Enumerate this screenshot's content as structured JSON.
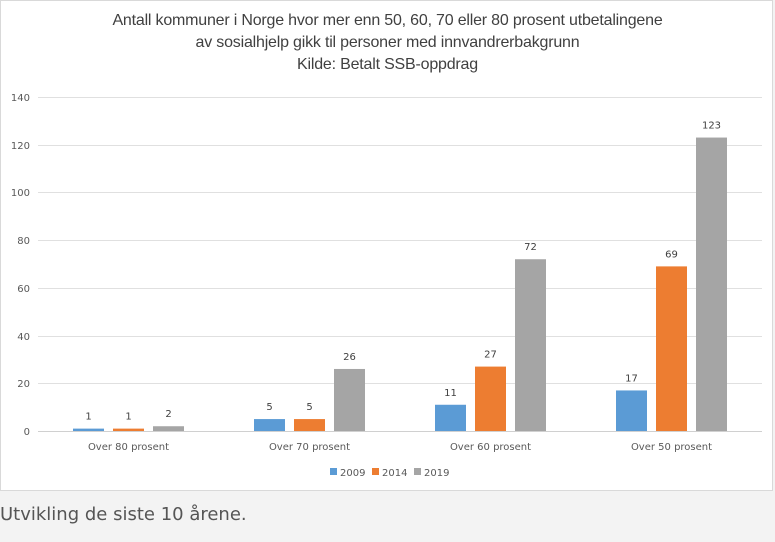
{
  "chart_data": {
    "type": "bar",
    "title": [
      "Antall kommuner i Norge hvor mer enn 50, 60, 70 eller 80 prosent utbetalingene",
      "av sosialhjelp gikk til personer med innvandrerbakgrunn",
      "Kilde: Betalt SSB-oppdrag"
    ],
    "xlabel": "",
    "ylabel": "",
    "ylim": [
      0,
      140
    ],
    "yticks": [
      0,
      20,
      40,
      60,
      80,
      100,
      120,
      140
    ],
    "grid": true,
    "legend_position": "bottom",
    "categories": [
      "Over 80 prosent",
      "Over 70 prosent",
      "Over 60 prosent",
      "Over 50 prosent"
    ],
    "series": [
      {
        "name": "2009",
        "color": "#5b9bd5",
        "values": [
          1,
          5,
          11,
          17
        ]
      },
      {
        "name": "2014",
        "color": "#ed7d31",
        "values": [
          1,
          5,
          27,
          69
        ]
      },
      {
        "name": "2019",
        "color": "#a5a5a5",
        "values": [
          2,
          26,
          72,
          123
        ]
      }
    ]
  },
  "caption": "Utvikling de siste 10 årene."
}
